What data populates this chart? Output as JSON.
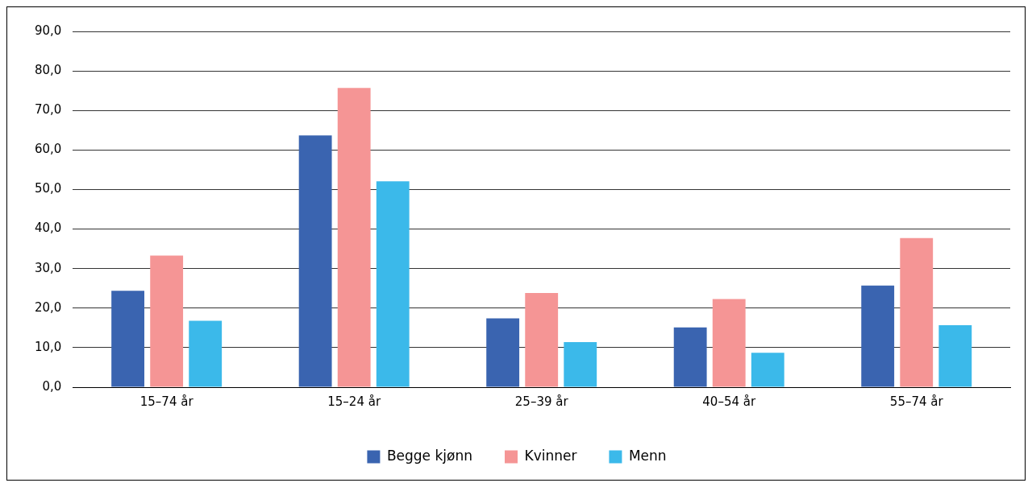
{
  "chart_data": {
    "type": "bar",
    "categories": [
      "15–74 år",
      "15–24 år",
      "25–39 år",
      "40–54 år",
      "55–74 år"
    ],
    "series": [
      {
        "name": "Begge kjønn",
        "color": "#3a64b0",
        "values": [
          24.4,
          63.7,
          17.4,
          15.1,
          25.7
        ]
      },
      {
        "name": "Kvinner",
        "color": "#f59595",
        "values": [
          33.3,
          75.7,
          23.8,
          22.3,
          37.7
        ]
      },
      {
        "name": "Menn",
        "color": "#3bb9ea",
        "values": [
          16.8,
          52.1,
          11.4,
          8.7,
          15.7
        ]
      }
    ],
    "ylim": [
      0,
      90
    ],
    "yticks": [
      {
        "value": 0,
        "label": "0,0"
      },
      {
        "value": 10,
        "label": "10,0"
      },
      {
        "value": 20,
        "label": "20,0"
      },
      {
        "value": 30,
        "label": "30,0"
      },
      {
        "value": 40,
        "label": "40,0"
      },
      {
        "value": 50,
        "label": "50,0"
      },
      {
        "value": 60,
        "label": "60,0"
      },
      {
        "value": 70,
        "label": "70,0"
      },
      {
        "value": 80,
        "label": "80,0"
      },
      {
        "value": 90,
        "label": "90,0"
      }
    ],
    "grid": "y",
    "legend": "bottom"
  }
}
